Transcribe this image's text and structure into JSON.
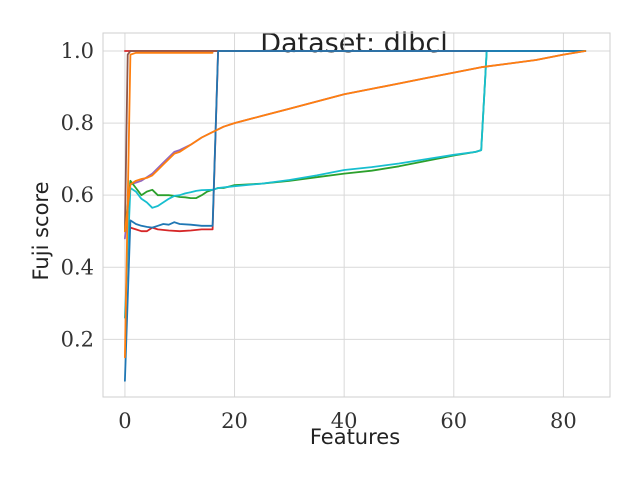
{
  "chart_data": {
    "type": "line",
    "title": "Dataset: dlbcl",
    "xlabel": "Features",
    "ylabel": "Fuji score",
    "xlim": [
      -4,
      88.5
    ],
    "ylim": [
      0.04,
      1.05
    ],
    "xticks": [
      0,
      20,
      40,
      60,
      80
    ],
    "yticks": [
      0.2,
      0.4,
      0.6,
      0.8,
      1.0
    ],
    "ytick_labels": [
      "0.2",
      "0.4",
      "0.6",
      "0.8",
      "1.0"
    ],
    "grid": true,
    "legend": "none",
    "colors": {
      "series_1": "#d62728",
      "series_2": "#8c564b",
      "series_3": "#9467bd",
      "series_4": "#2ca02c",
      "series_5": "#17becf",
      "series_6": "#1f77b4",
      "series_7": "#ff7f0e"
    },
    "series": [
      {
        "color": "#d62728",
        "points": [
          [
            0,
            1.0
          ],
          [
            84,
            1.0
          ]
        ]
      },
      {
        "color": "#d62728",
        "points": [
          [
            0,
            0.5
          ],
          [
            1,
            0.51
          ],
          [
            2,
            0.505
          ],
          [
            3,
            0.5
          ],
          [
            4,
            0.5
          ],
          [
            5,
            0.51
          ],
          [
            6,
            0.505
          ],
          [
            8,
            0.502
          ],
          [
            10,
            0.5
          ],
          [
            12,
            0.502
          ],
          [
            14,
            0.505
          ],
          [
            16,
            0.505
          ],
          [
            17,
            1.0
          ],
          [
            20,
            1.0
          ],
          [
            40,
            1.0
          ],
          [
            60,
            1.0
          ],
          [
            84,
            1.0
          ]
        ]
      },
      {
        "color": "#8c564b",
        "points": [
          [
            0,
            0.5
          ],
          [
            0.5,
            0.99
          ],
          [
            1,
            1.0
          ],
          [
            84,
            1.0
          ]
        ]
      },
      {
        "color": "#9467bd",
        "points": [
          [
            0,
            0.48
          ],
          [
            1,
            0.63
          ],
          [
            2,
            0.635
          ],
          [
            3,
            0.64
          ],
          [
            4,
            0.65
          ],
          [
            5,
            0.66
          ],
          [
            6,
            0.675
          ],
          [
            7,
            0.69
          ],
          [
            8,
            0.705
          ],
          [
            9,
            0.72
          ],
          [
            10,
            0.725
          ],
          [
            12,
            0.74
          ],
          [
            14,
            0.76
          ],
          [
            16,
            0.775
          ],
          [
            18,
            0.79
          ],
          [
            20,
            0.8
          ],
          [
            25,
            0.82
          ],
          [
            30,
            0.84
          ],
          [
            35,
            0.86
          ],
          [
            40,
            0.88
          ],
          [
            45,
            0.895
          ],
          [
            50,
            0.91
          ],
          [
            55,
            0.925
          ],
          [
            60,
            0.94
          ],
          [
            65,
            0.955
          ],
          [
            70,
            0.965
          ],
          [
            75,
            0.975
          ],
          [
            80,
            0.99
          ],
          [
            84,
            1.0
          ]
        ]
      },
      {
        "color": "#2ca02c",
        "points": [
          [
            0,
            0.5
          ],
          [
            1,
            0.64
          ],
          [
            2,
            0.62
          ],
          [
            3,
            0.6
          ],
          [
            4,
            0.61
          ],
          [
            5,
            0.615
          ],
          [
            6,
            0.6
          ],
          [
            7,
            0.6
          ],
          [
            8,
            0.6
          ],
          [
            9,
            0.598
          ],
          [
            10,
            0.595
          ],
          [
            11,
            0.594
          ],
          [
            12,
            0.592
          ],
          [
            13,
            0.592
          ],
          [
            14,
            0.6
          ],
          [
            15,
            0.61
          ],
          [
            16,
            0.615
          ],
          [
            17,
            0.62
          ],
          [
            18,
            0.62
          ],
          [
            20,
            0.628
          ],
          [
            25,
            0.632
          ],
          [
            30,
            0.64
          ],
          [
            35,
            0.65
          ],
          [
            40,
            0.66
          ],
          [
            45,
            0.668
          ],
          [
            50,
            0.68
          ],
          [
            55,
            0.695
          ],
          [
            60,
            0.71
          ],
          [
            64,
            0.72
          ],
          [
            65,
            0.725
          ],
          [
            66,
            1.0
          ],
          [
            84,
            1.0
          ]
        ]
      },
      {
        "color": "#17becf",
        "points": [
          [
            0,
            0.26
          ],
          [
            1,
            0.62
          ],
          [
            2,
            0.61
          ],
          [
            3,
            0.59
          ],
          [
            4,
            0.58
          ],
          [
            5,
            0.565
          ],
          [
            6,
            0.57
          ],
          [
            7,
            0.58
          ],
          [
            8,
            0.59
          ],
          [
            9,
            0.598
          ],
          [
            10,
            0.6
          ],
          [
            11,
            0.605
          ],
          [
            12,
            0.608
          ],
          [
            13,
            0.612
          ],
          [
            14,
            0.614
          ],
          [
            16,
            0.615
          ],
          [
            17,
            0.62
          ],
          [
            20,
            0.625
          ],
          [
            25,
            0.632
          ],
          [
            30,
            0.642
          ],
          [
            35,
            0.655
          ],
          [
            40,
            0.67
          ],
          [
            45,
            0.678
          ],
          [
            50,
            0.688
          ],
          [
            55,
            0.7
          ],
          [
            60,
            0.712
          ],
          [
            64,
            0.72
          ],
          [
            65,
            0.725
          ],
          [
            66,
            1.0
          ],
          [
            84,
            1.0
          ]
        ]
      },
      {
        "color": "#1f77b4",
        "points": [
          [
            0,
            0.085
          ],
          [
            1,
            0.53
          ],
          [
            2,
            0.52
          ],
          [
            3,
            0.515
          ],
          [
            4,
            0.512
          ],
          [
            5,
            0.51
          ],
          [
            6,
            0.515
          ],
          [
            7,
            0.52
          ],
          [
            8,
            0.518
          ],
          [
            9,
            0.525
          ],
          [
            10,
            0.52
          ],
          [
            12,
            0.518
          ],
          [
            14,
            0.515
          ],
          [
            16,
            0.515
          ],
          [
            17,
            1.0
          ],
          [
            20,
            1.0
          ],
          [
            40,
            1.0
          ],
          [
            60,
            1.0
          ],
          [
            84,
            1.0
          ]
        ]
      },
      {
        "color": "#ff7f0e",
        "points": [
          [
            0,
            0.15
          ],
          [
            1,
            0.99
          ],
          [
            2,
            0.995
          ],
          [
            16,
            0.995
          ]
        ]
      },
      {
        "color": "#ff7f0e",
        "points": [
          [
            0,
            0.5
          ],
          [
            1,
            0.63
          ],
          [
            2,
            0.64
          ],
          [
            3,
            0.645
          ],
          [
            4,
            0.648
          ],
          [
            5,
            0.655
          ],
          [
            6,
            0.67
          ],
          [
            7,
            0.685
          ],
          [
            8,
            0.7
          ],
          [
            9,
            0.715
          ],
          [
            10,
            0.72
          ],
          [
            12,
            0.74
          ],
          [
            14,
            0.76
          ],
          [
            16,
            0.775
          ],
          [
            18,
            0.79
          ],
          [
            20,
            0.8
          ],
          [
            25,
            0.82
          ],
          [
            30,
            0.84
          ],
          [
            35,
            0.86
          ],
          [
            40,
            0.88
          ],
          [
            45,
            0.895
          ],
          [
            50,
            0.91
          ],
          [
            55,
            0.925
          ],
          [
            60,
            0.94
          ],
          [
            65,
            0.955
          ],
          [
            70,
            0.965
          ],
          [
            75,
            0.975
          ],
          [
            80,
            0.99
          ],
          [
            84,
            1.0
          ]
        ]
      }
    ]
  }
}
